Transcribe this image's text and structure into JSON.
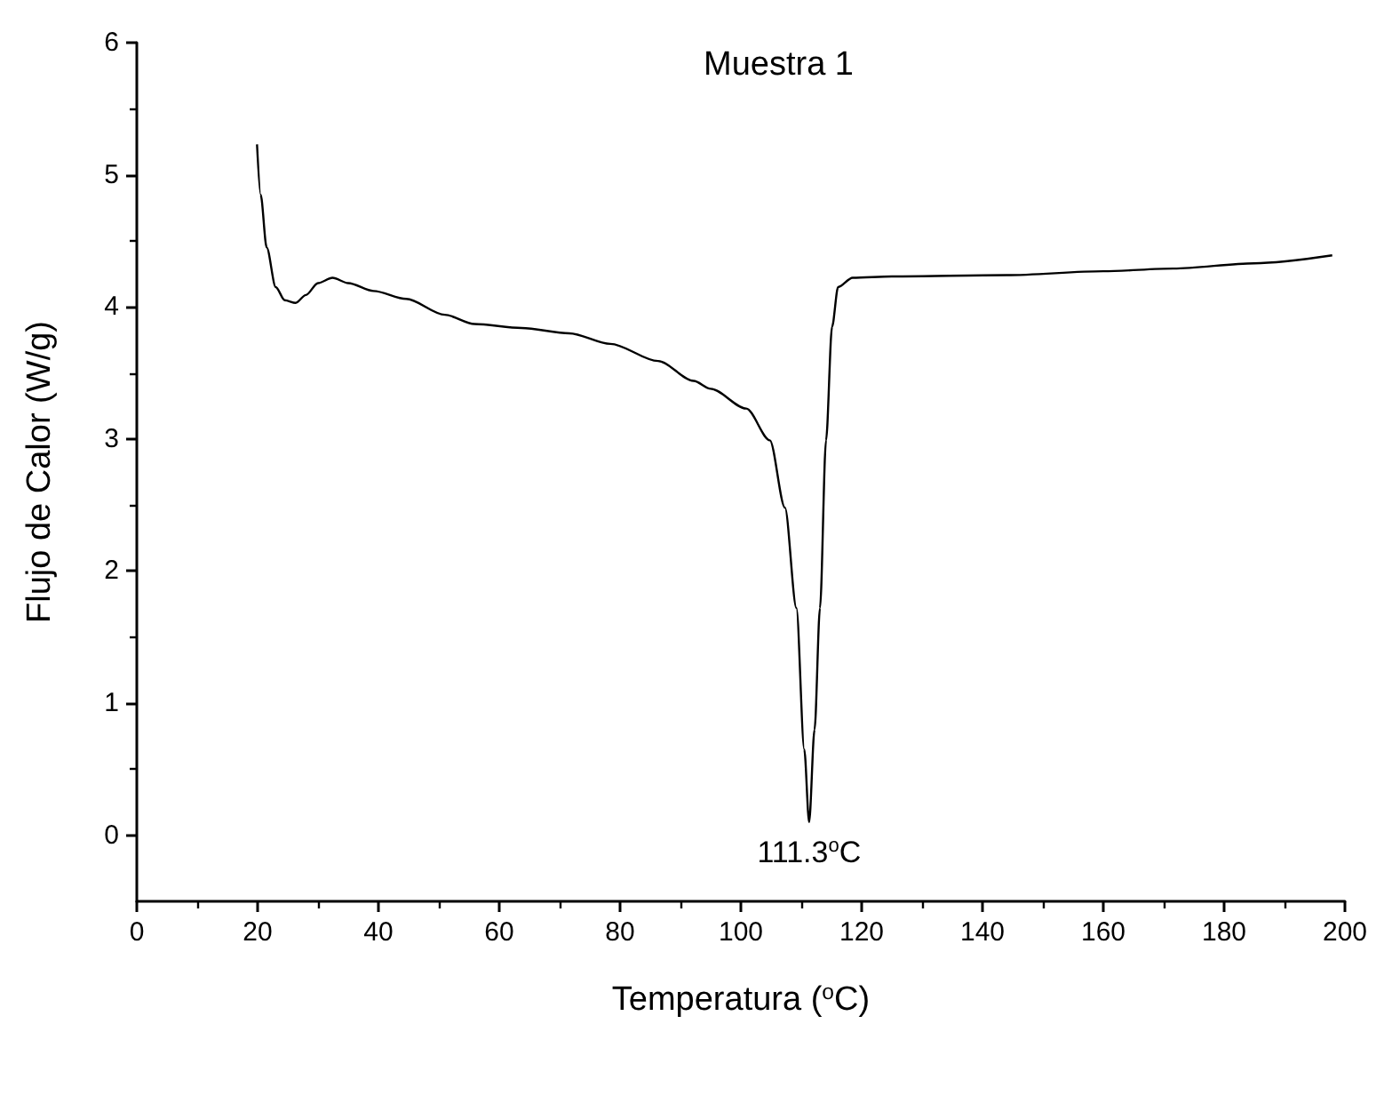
{
  "chart_data": {
    "type": "line",
    "title": "Muestra 1",
    "xlabel": "Temperatura ($^{o}$C)",
    "ylabel": "Flujo de Calor (W/g)",
    "x": [
      19.9,
      20.5,
      21.5,
      23,
      24.5,
      26.3,
      28,
      30,
      32.4,
      35,
      39.2,
      44.6,
      51,
      55.9,
      63.7,
      71.6,
      78.4,
      86.3,
      92.2,
      95,
      100.9,
      104.8,
      107.3,
      109.2,
      110.5,
      111.3,
      112.2,
      113.1,
      114.1,
      115.1,
      116.1,
      118.5,
      125,
      144,
      160,
      171.6,
      185,
      197.9
    ],
    "series": [
      {
        "color": "#000000",
        "values": [
          5.23,
          4.85,
          4.45,
          4.15,
          4.05,
          4.03,
          4.09,
          4.18,
          4.22,
          4.18,
          4.12,
          4.06,
          3.94,
          3.87,
          3.84,
          3.8,
          3.72,
          3.59,
          3.44,
          3.38,
          3.23,
          2.99,
          2.48,
          1.72,
          0.65,
          0.1,
          0.8,
          1.72,
          2.99,
          3.85,
          4.15,
          4.22,
          4.23,
          4.24,
          4.27,
          4.29,
          4.33,
          4.39
        ]
      }
    ],
    "annotations": [
      {
        "text": "111.3$^{o}$C",
        "x": 111.3,
        "y": 0.1
      }
    ],
    "xlim": [
      0,
      200
    ],
    "xticks": [
      0,
      20,
      40,
      60,
      80,
      100,
      120,
      140,
      160,
      180,
      200
    ],
    "ylim": [
      -0.5,
      6
    ],
    "yticks": [
      0,
      1,
      2,
      3,
      4,
      5,
      6
    ],
    "grid": false,
    "marker": "none",
    "line_style": "solid"
  }
}
